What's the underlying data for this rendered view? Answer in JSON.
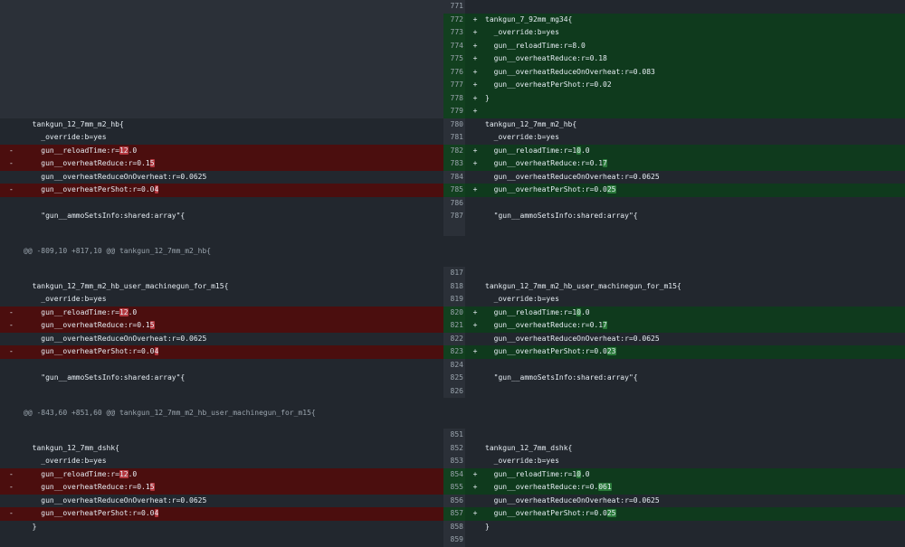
{
  "hunk_headers": [
    "@@ -809,10 +817,10 @@ tankgun_12_7mm_m2_hb{",
    "@@ -843,60 +851,60 @@ tankgun_12_7mm_m2_hb_user_machinegun_for_m15{"
  ],
  "rows": [
    {
      "ln": "771",
      "lt": "empty",
      "rt": "ctx",
      "left": "",
      "right": "",
      "rs": ""
    },
    {
      "ln": "772",
      "lt": "empty",
      "rt": "add",
      "left": "",
      "right": "tankgun_7_92mm_mg34{",
      "rs": "+"
    },
    {
      "ln": "773",
      "lt": "empty",
      "rt": "add",
      "left": "",
      "right": "  _override:b=yes",
      "rs": "+"
    },
    {
      "ln": "774",
      "lt": "empty",
      "rt": "add",
      "left": "",
      "right": "  gun__reloadTime:r=8.0",
      "rs": "+"
    },
    {
      "ln": "775",
      "lt": "empty",
      "rt": "add",
      "left": "",
      "right": "  gun__overheatReduce:r=0.18",
      "rs": "+"
    },
    {
      "ln": "776",
      "lt": "empty",
      "rt": "add",
      "left": "",
      "right": "  gun__overheatReduceOnOverheat:r=0.083",
      "rs": "+"
    },
    {
      "ln": "777",
      "lt": "empty",
      "rt": "add",
      "left": "",
      "right": "  gun__overheatPerShot:r=0.02",
      "rs": "+"
    },
    {
      "ln": "778",
      "lt": "empty",
      "rt": "add",
      "left": "",
      "right": "}",
      "rs": "+"
    },
    {
      "ln": "779",
      "lt": "empty",
      "rt": "add",
      "left": "",
      "right": "",
      "rs": "+"
    },
    {
      "ln": "780",
      "lt": "ctx",
      "rt": "ctx",
      "left": "tankgun_12_7mm_m2_hb{",
      "right": "tankgun_12_7mm_m2_hb{",
      "rs": ""
    },
    {
      "ln": "781",
      "lt": "ctx",
      "rt": "ctx",
      "left": "  _override:b=yes",
      "right": "  _override:b=yes",
      "rs": ""
    },
    {
      "ln": "782",
      "lt": "del",
      "rt": "add",
      "ls": "-",
      "left": "  gun__reloadTime:r=",
      "lh": "12",
      "lt2": ".0",
      "right": "  gun__reloadTime:r=1",
      "rh": "0",
      "rt2": ".0",
      "rs": "+"
    },
    {
      "ln": "783",
      "lt": "del",
      "rt": "add",
      "ls": "-",
      "left": "  gun__overheatReduce:r=0.1",
      "lh": "5",
      "lt2": "",
      "right": "  gun__overheatReduce:r=0.1",
      "rh": "7",
      "rt2": "",
      "rs": "+"
    },
    {
      "ln": "784",
      "lt": "ctx",
      "rt": "ctx",
      "left": "  gun__overheatReduceOnOverheat:r=0.0625",
      "right": "  gun__overheatReduceOnOverheat:r=0.0625",
      "rs": ""
    },
    {
      "ln": "785",
      "lt": "del",
      "rt": "add",
      "ls": "-",
      "left": "  gun__overheatPerShot:r=0.0",
      "lh": "4",
      "lt2": "",
      "right": "  gun__overheatPerShot:r=0.0",
      "rh": "25",
      "rt2": "",
      "rs": "+"
    },
    {
      "ln": "786",
      "lt": "ctx",
      "rt": "ctx",
      "left": "",
      "right": "",
      "rs": ""
    },
    {
      "ln": "787",
      "lt": "ctx",
      "rt": "ctx",
      "left": "  \"gun__ammoSetsInfo:shared:array\"{",
      "right": "  \"gun__ammoSetsInfo:shared:array\"{",
      "rs": ""
    },
    {
      "ln": "",
      "lt": "ctx",
      "rt": "ctx",
      "left": "",
      "right": "",
      "rs": ""
    },
    {
      "hunk": 0
    },
    {
      "ln": "817",
      "lt": "ctx",
      "rt": "ctx",
      "left": "",
      "right": "",
      "rs": ""
    },
    {
      "ln": "818",
      "lt": "ctx",
      "rt": "ctx",
      "left": "tankgun_12_7mm_m2_hb_user_machinegun_for_m15{",
      "right": "tankgun_12_7mm_m2_hb_user_machinegun_for_m15{",
      "rs": ""
    },
    {
      "ln": "819",
      "lt": "ctx",
      "rt": "ctx",
      "left": "  _override:b=yes",
      "right": "  _override:b=yes",
      "rs": ""
    },
    {
      "ln": "820",
      "lt": "del",
      "rt": "add",
      "ls": "-",
      "left": "  gun__reloadTime:r=",
      "lh": "12",
      "lt2": ".0",
      "right": "  gun__reloadTime:r=1",
      "rh": "0",
      "rt2": ".0",
      "rs": "+"
    },
    {
      "ln": "821",
      "lt": "del",
      "rt": "add",
      "ls": "-",
      "left": "  gun__overheatReduce:r=0.1",
      "lh": "5",
      "lt2": "",
      "right": "  gun__overheatReduce:r=0.1",
      "rh": "7",
      "rt2": "",
      "rs": "+"
    },
    {
      "ln": "822",
      "lt": "ctx",
      "rt": "ctx",
      "left": "  gun__overheatReduceOnOverheat:r=0.0625",
      "right": "  gun__overheatReduceOnOverheat:r=0.0625",
      "rs": ""
    },
    {
      "ln": "823",
      "lt": "del",
      "rt": "add",
      "ls": "-",
      "left": "  gun__overheatPerShot:r=0.0",
      "lh": "4",
      "lt2": "",
      "right": "  gun__overheatPerShot:r=0.0",
      "rh": "23",
      "rt2": "",
      "rs": "+"
    },
    {
      "ln": "824",
      "lt": "ctx",
      "rt": "ctx",
      "left": "",
      "right": "",
      "rs": ""
    },
    {
      "ln": "825",
      "lt": "ctx",
      "rt": "ctx",
      "left": "  \"gun__ammoSetsInfo:shared:array\"{",
      "right": "  \"gun__ammoSetsInfo:shared:array\"{",
      "rs": ""
    },
    {
      "ln": "826",
      "lt": "ctx",
      "rt": "ctx",
      "left": "",
      "right": "",
      "rs": ""
    },
    {
      "hunk": 1
    },
    {
      "ln": "851",
      "lt": "ctx",
      "rt": "ctx",
      "left": "",
      "right": "",
      "rs": ""
    },
    {
      "ln": "852",
      "lt": "ctx",
      "rt": "ctx",
      "left": "tankgun_12_7mm_dshk{",
      "right": "tankgun_12_7mm_dshk{",
      "rs": ""
    },
    {
      "ln": "853",
      "lt": "ctx",
      "rt": "ctx",
      "left": "  _override:b=yes",
      "right": "  _override:b=yes",
      "rs": ""
    },
    {
      "ln": "854",
      "lt": "del",
      "rt": "add",
      "ls": "-",
      "left": "  gun__reloadTime:r=",
      "lh": "12",
      "lt2": ".0",
      "right": "  gun__reloadTime:r=1",
      "rh": "0",
      "rt2": ".0",
      "rs": "+"
    },
    {
      "ln": "855",
      "lt": "del",
      "rt": "add",
      "ls": "-",
      "left": "  gun__overheatReduce:r=0.1",
      "lh": "5",
      "lt2": "",
      "right": "  gun__overheatReduce:r=0.",
      "rh": "061",
      "rt2": "",
      "rs": "+"
    },
    {
      "ln": "856",
      "lt": "ctx",
      "rt": "ctx",
      "left": "  gun__overheatReduceOnOverheat:r=0.0625",
      "right": "  gun__overheatReduceOnOverheat:r=0.0625",
      "rs": ""
    },
    {
      "ln": "857",
      "lt": "del",
      "rt": "add",
      "ls": "-",
      "left": "  gun__overheatPerShot:r=0.0",
      "lh": "4",
      "lt2": "",
      "right": "  gun__overheatPerShot:r=0.0",
      "rh": "25",
      "rt2": "",
      "rs": "+"
    },
    {
      "ln": "858",
      "lt": "ctx",
      "rt": "ctx",
      "left": "}",
      "right": "}",
      "rs": ""
    },
    {
      "ln": "859",
      "lt": "ctx",
      "rt": "ctx",
      "left": "",
      "right": "",
      "rs": ""
    }
  ]
}
